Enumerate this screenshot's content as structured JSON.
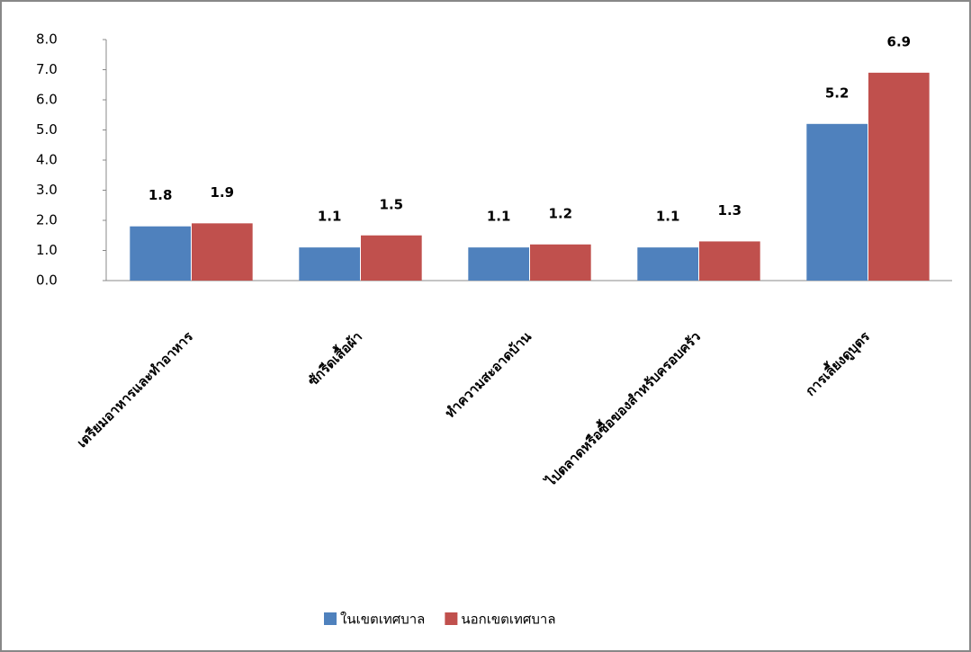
{
  "chart_data": {
    "type": "bar",
    "categories": [
      "เตรียมอาหารและทำอาหาร",
      "ซักรีดเสื้อผ้า",
      "ทำความสะอาดบ้าน",
      "ไปตลาดหรือซื้อของสำหรับครอบครัว",
      "การเลี้ยงดูบุตร"
    ],
    "series": [
      {
        "name": "ในเขตเทศบาล",
        "color": "#4f81bd",
        "values": [
          1.8,
          1.1,
          1.1,
          1.1,
          5.2
        ]
      },
      {
        "name": "นอกเขตเทศบาล",
        "color": "#c0504d",
        "values": [
          1.9,
          1.5,
          1.2,
          1.3,
          6.9
        ]
      }
    ],
    "ylim": [
      0,
      8
    ],
    "yticks": [
      {
        "value": 0,
        "label": "0.0"
      },
      {
        "value": 1,
        "label": "1.0"
      },
      {
        "value": 2,
        "label": "2.0"
      },
      {
        "value": 3,
        "label": "3.0"
      },
      {
        "value": 4,
        "label": "4.0"
      },
      {
        "value": 5,
        "label": "5.0"
      },
      {
        "value": 6,
        "label": "6.0"
      },
      {
        "value": 7,
        "label": "7.0"
      },
      {
        "value": 8,
        "label": "8.0"
      }
    ],
    "legend": "bottom"
  }
}
